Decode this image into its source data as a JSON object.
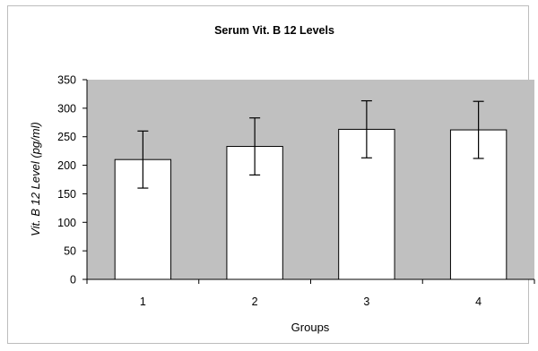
{
  "chart_data": {
    "type": "bar",
    "title": "Serum Vit. B 12 Levels",
    "xlabel": "Groups",
    "ylabel": "Vit. B 12 Level (pg/ml)",
    "categories": [
      "1",
      "2",
      "3",
      "4"
    ],
    "values": [
      210,
      233,
      263,
      262
    ],
    "error": [
      50,
      50,
      50,
      50
    ],
    "ylim": [
      0,
      350
    ],
    "yticks": [
      0,
      50,
      100,
      150,
      200,
      250,
      300,
      350
    ],
    "grid": false,
    "legend": "none",
    "colors": {
      "plot_background": "#c0c0c0",
      "bar_fill": "#ffffff",
      "bar_stroke": "#000000",
      "error_bar": "#000000"
    }
  }
}
